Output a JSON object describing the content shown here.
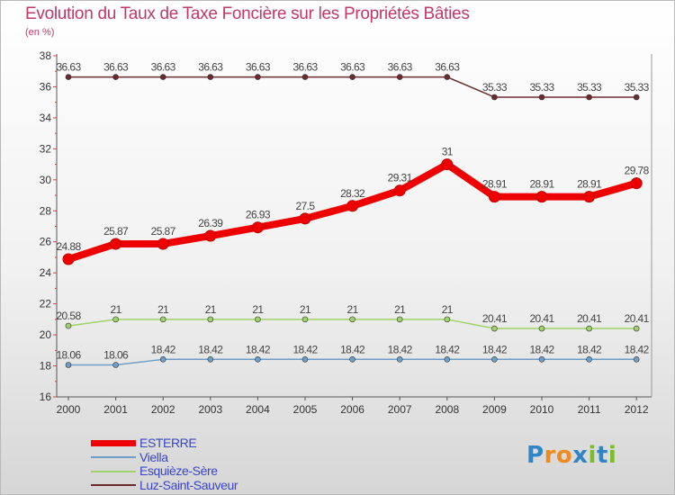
{
  "title": "Evolution du Taux de Taxe Foncière sur les Propriétés Bâties",
  "subtitle": "(en %)",
  "logo": {
    "text": "Proxiti",
    "letters": [
      {
        "ch": "P",
        "color": "#2e86c8"
      },
      {
        "ch": "r",
        "color": "#f08a1c"
      },
      {
        "ch": "o",
        "color": "#f08a1c"
      },
      {
        "ch": "x",
        "color": "#2e86c8"
      },
      {
        "ch": "i",
        "color": "#7cbb2a"
      },
      {
        "ch": "t",
        "color": "#2e86c8"
      },
      {
        "ch": "i",
        "color": "#7cbb2a"
      }
    ]
  },
  "chart_data": {
    "type": "line",
    "title": "Evolution du Taux de Taxe Foncière sur les Propriétés Bâties",
    "ylabel": "(en %)",
    "x": [
      "2000",
      "2001",
      "2002",
      "2003",
      "2004",
      "2005",
      "2006",
      "2007",
      "2008",
      "2009",
      "2010",
      "2011",
      "2012"
    ],
    "ylim": [
      16,
      38
    ],
    "yticks": [
      16,
      18,
      20,
      22,
      24,
      26,
      28,
      30,
      32,
      34,
      36,
      38
    ],
    "grid": false,
    "legend_position": "bottom-left",
    "series": [
      {
        "name": "ESTERRE",
        "color": "#ee0000",
        "values": [
          24.88,
          25.87,
          25.87,
          26.39,
          26.93,
          27.5,
          28.32,
          29.31,
          31,
          28.91,
          28.91,
          28.91,
          29.78
        ],
        "labels": [
          "24.88",
          "25.87",
          "25.87",
          "26.39",
          "26.93",
          "27.5",
          "28.32",
          "29.31",
          "31",
          "28.91",
          "28.91",
          "28.91",
          "29.78"
        ]
      },
      {
        "name": "Viella",
        "color": "#6c9ec8",
        "values": [
          18.06,
          18.06,
          18.42,
          18.42,
          18.42,
          18.42,
          18.42,
          18.42,
          18.42,
          18.42,
          18.42,
          18.42,
          18.42
        ],
        "labels": [
          "18.06",
          "18.06",
          "18.42",
          "18.42",
          "18.42",
          "18.42",
          "18.42",
          "18.42",
          "18.42",
          "18.42",
          "18.42",
          "18.42",
          "18.42"
        ]
      },
      {
        "name": "Esquièze-Sère",
        "color": "#9ed36a",
        "values": [
          20.58,
          21,
          21,
          21,
          21,
          21,
          21,
          21,
          21,
          20.41,
          20.41,
          20.41,
          20.41
        ],
        "labels": [
          "20.58",
          "21",
          "21",
          "21",
          "21",
          "21",
          "21",
          "21",
          "21",
          "20.41",
          "20.41",
          "20.41",
          "20.41"
        ]
      },
      {
        "name": "Luz-Saint-Sauveur",
        "color": "#6b2a2e",
        "values": [
          36.63,
          36.63,
          36.63,
          36.63,
          36.63,
          36.63,
          36.63,
          36.63,
          36.63,
          35.33,
          35.33,
          35.33,
          35.33
        ],
        "labels": [
          "36.63",
          "36.63",
          "36.63",
          "36.63",
          "36.63",
          "36.63",
          "36.63",
          "36.63",
          "36.63",
          "35.33",
          "35.33",
          "35.33",
          "35.33"
        ]
      }
    ]
  }
}
